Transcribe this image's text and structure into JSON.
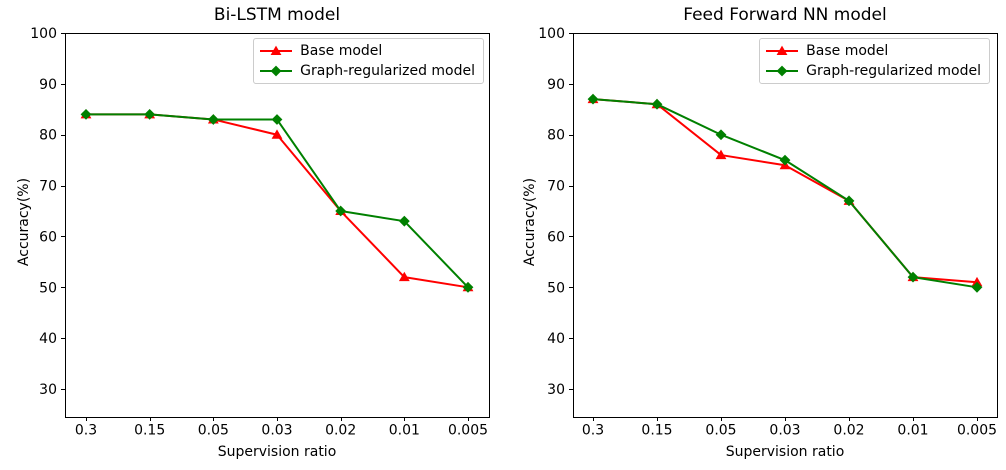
{
  "figure": {
    "background": "#ffffff"
  },
  "chart_data": [
    {
      "type": "line",
      "title": "Bi-LSTM model",
      "xlabel": "Supervision ratio",
      "ylabel": "Accuracy(%)",
      "x_axis_type": "categorical",
      "categories": [
        "0.3",
        "0.15",
        "0.05",
        "0.03",
        "0.02",
        "0.01",
        "0.005"
      ],
      "ylim": [
        24.5,
        100
      ],
      "yticks": [
        30,
        40,
        50,
        60,
        70,
        80,
        90,
        100
      ],
      "grid": false,
      "legend": {
        "position": "upper right"
      },
      "series": [
        {
          "name": "Base model",
          "color": "#ff0000",
          "marker": "triangle-up",
          "values": [
            84,
            84,
            83,
            80,
            65,
            52,
            50
          ]
        },
        {
          "name": "Graph-regularized model",
          "color": "#008000",
          "marker": "diamond",
          "values": [
            84,
            84,
            83,
            83,
            65,
            63,
            50
          ]
        }
      ]
    },
    {
      "type": "line",
      "title": "Feed Forward NN model",
      "xlabel": "Supervision ratio",
      "ylabel": "Accuracy(%)",
      "x_axis_type": "categorical",
      "categories": [
        "0.3",
        "0.15",
        "0.05",
        "0.03",
        "0.02",
        "0.01",
        "0.005"
      ],
      "ylim": [
        24.5,
        100
      ],
      "yticks": [
        30,
        40,
        50,
        60,
        70,
        80,
        90,
        100
      ],
      "grid": false,
      "legend": {
        "position": "upper right"
      },
      "series": [
        {
          "name": "Base model",
          "color": "#ff0000",
          "marker": "triangle-up",
          "values": [
            87,
            86,
            76,
            74,
            67,
            52,
            51
          ]
        },
        {
          "name": "Graph-regularized model",
          "color": "#008000",
          "marker": "diamond",
          "values": [
            87,
            86,
            80,
            75,
            67,
            52,
            50
          ]
        }
      ]
    }
  ]
}
